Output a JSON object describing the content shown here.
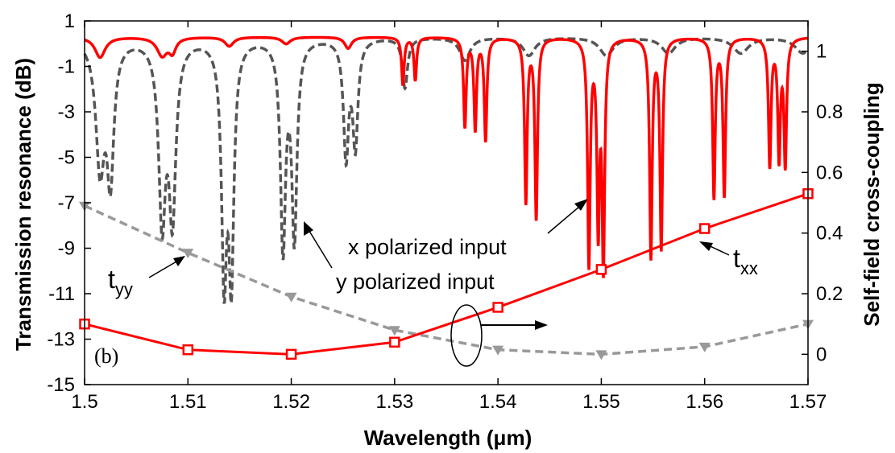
{
  "chart_data": {
    "type": "line",
    "panel_label": "(b)",
    "xlabel": "Wavelength (μm)",
    "ylabel_left": "Transmission resonance  (dB)",
    "ylabel_right": "Self-field cross-coupling",
    "xlim": [
      1.5,
      1.57
    ],
    "ylim_left": [
      -15,
      1
    ],
    "ylim_right": [
      -0.1,
      1.1
    ],
    "x_ticks": [
      "1.5",
      "1.51",
      "1.52",
      "1.53",
      "1.54",
      "1.55",
      "1.56",
      "1.57"
    ],
    "y_ticks_left": [
      "1",
      "-1",
      "-3",
      "-5",
      "-7",
      "-9",
      "-11",
      "-13",
      "-15"
    ],
    "y_ticks_right": [
      "1",
      "0.8",
      "0.6",
      "0.4",
      "0.2",
      "0"
    ],
    "grid": false,
    "colors": {
      "x_polarized": "#ff0000",
      "y_polarized": "#555555",
      "t_yy": "#999999",
      "t_xx": "#ff0000"
    },
    "annotations": {
      "x_input": "x polarized input",
      "y_input": "y polarized input",
      "t_yy": "t",
      "t_yy_sub": "yy",
      "t_xx": "t",
      "t_xx_sub": "xx"
    },
    "series": [
      {
        "axis": "right",
        "style": "dashed-triangle",
        "x": [
          1.5,
          1.51,
          1.52,
          1.53,
          1.54,
          1.55,
          1.56,
          1.57
        ],
        "values": [
          0.49,
          0.335,
          0.19,
          0.08,
          0.015,
          0.0,
          0.025,
          0.1
        ]
      },
      {
        "axis": "right",
        "style": "solid-square",
        "x": [
          1.5,
          1.51,
          1.52,
          1.53,
          1.54,
          1.55,
          1.56,
          1.57
        ],
        "values": [
          0.1,
          0.015,
          0.0,
          0.04,
          0.155,
          0.28,
          0.415,
          0.53
        ]
      },
      {
        "axis": "left",
        "style": "dashed",
        "baseline": 0.3,
        "resonances": [
          {
            "x": 1.5015,
            "depth": 5.5,
            "width": 0.0005
          },
          {
            "x": 1.5025,
            "depth": 5.8,
            "width": 0.0004
          },
          {
            "x": 1.5075,
            "depth": 7.7,
            "width": 0.0004
          },
          {
            "x": 1.5085,
            "depth": 7.5,
            "width": 0.0004
          },
          {
            "x": 1.5135,
            "depth": 10.0,
            "width": 0.0003
          },
          {
            "x": 1.5142,
            "depth": 10.0,
            "width": 0.0003
          },
          {
            "x": 1.5192,
            "depth": 9.1,
            "width": 0.0003
          },
          {
            "x": 1.5203,
            "depth": 8.6,
            "width": 0.0003
          },
          {
            "x": 1.5253,
            "depth": 5.1,
            "width": 0.0003
          },
          {
            "x": 1.5262,
            "depth": 4.6,
            "width": 0.0003
          },
          {
            "x": 1.531,
            "depth": 2.2,
            "width": 0.0003
          },
          {
            "x": 1.5368,
            "depth": 1.0,
            "width": 0.0006
          },
          {
            "x": 1.543,
            "depth": 0.8,
            "width": 0.0007
          },
          {
            "x": 1.5505,
            "depth": 0.8,
            "width": 0.0008
          },
          {
            "x": 1.5565,
            "depth": 0.7,
            "width": 0.0008
          },
          {
            "x": 1.5635,
            "depth": 0.7,
            "width": 0.0009
          },
          {
            "x": 1.5695,
            "depth": 0.7,
            "width": 0.0009
          }
        ]
      },
      {
        "axis": "left",
        "style": "solid",
        "baseline": 0.3,
        "resonances": [
          {
            "x": 1.5015,
            "depth": 0.9,
            "width": 0.0006
          },
          {
            "x": 1.5075,
            "depth": 0.8,
            "width": 0.0006
          },
          {
            "x": 1.5085,
            "depth": 0.6,
            "width": 0.0004
          },
          {
            "x": 1.514,
            "depth": 0.4,
            "width": 0.0005
          },
          {
            "x": 1.5195,
            "depth": 0.3,
            "width": 0.0005
          },
          {
            "x": 1.5255,
            "depth": 0.5,
            "width": 0.0004
          },
          {
            "x": 1.5308,
            "depth": 2.1,
            "width": 0.00015
          },
          {
            "x": 1.532,
            "depth": 1.9,
            "width": 0.00015
          },
          {
            "x": 1.5368,
            "depth": 3.9,
            "width": 0.00015
          },
          {
            "x": 1.5378,
            "depth": 4.0,
            "width": 0.00015
          },
          {
            "x": 1.5388,
            "depth": 4.5,
            "width": 0.00015
          },
          {
            "x": 1.5427,
            "depth": 7.2,
            "width": 0.00015
          },
          {
            "x": 1.5437,
            "depth": 7.9,
            "width": 0.00015
          },
          {
            "x": 1.5488,
            "depth": 9.9,
            "width": 0.00015
          },
          {
            "x": 1.5497,
            "depth": 8.1,
            "width": 0.00015
          },
          {
            "x": 1.5502,
            "depth": 9.8,
            "width": 0.00015
          },
          {
            "x": 1.5548,
            "depth": 9.6,
            "width": 0.00015
          },
          {
            "x": 1.5558,
            "depth": 9.2,
            "width": 0.00015
          },
          {
            "x": 1.5609,
            "depth": 7.0,
            "width": 0.00015
          },
          {
            "x": 1.5619,
            "depth": 6.9,
            "width": 0.00015
          },
          {
            "x": 1.5663,
            "depth": 5.6,
            "width": 0.00015
          },
          {
            "x": 1.5672,
            "depth": 5.2,
            "width": 0.00015
          },
          {
            "x": 1.5678,
            "depth": 5.5,
            "width": 0.00015
          }
        ]
      }
    ]
  }
}
